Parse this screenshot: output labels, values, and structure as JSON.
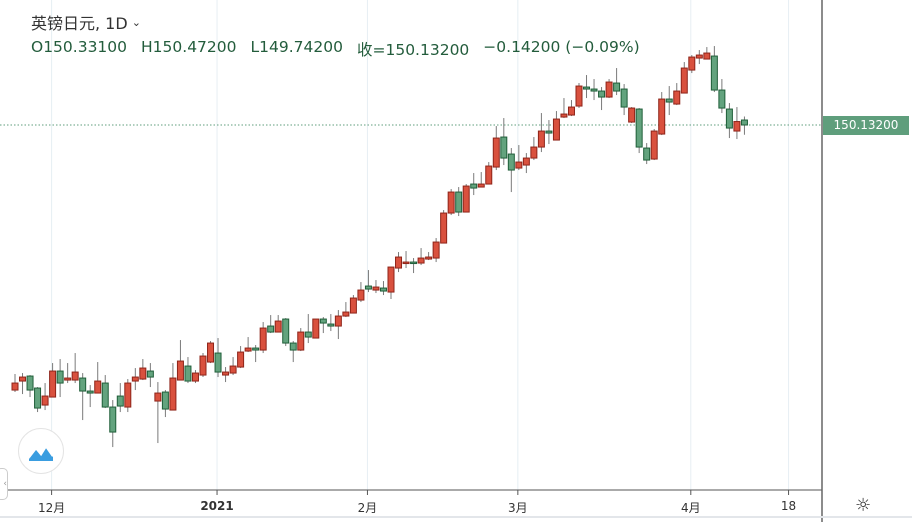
{
  "header": {
    "title": "英镑日元, 1D",
    "open": "O150.33100",
    "high": "H150.47200",
    "low": "L149.74200",
    "close": "收=150.13200",
    "change": "−0.14200 (−0.09%)"
  },
  "price_tag": "150.13200",
  "icons": {
    "settings": "sun-gear-icon",
    "logo": "wave-logo-icon",
    "collapse": "chevron-left-icon",
    "interval": "chevron-down-icon"
  },
  "colors": {
    "up": "#d9513e",
    "up_border": "#8e2419",
    "down": "#63a37e",
    "down_border": "#1f5e39",
    "wick": "#7a7a7a",
    "last_price_line": "#5f9e7c",
    "grid": "#e6eef3"
  },
  "chart_data": {
    "type": "candlestick",
    "title": "英镑日元, 1D",
    "x_tick_labels": [
      "12月",
      "2021",
      "2月",
      "3月",
      "4月",
      "18"
    ],
    "x_tick_candle_index": [
      5,
      27,
      47,
      67,
      90,
      103
    ],
    "last_price": 150.132,
    "ohlc": [
      [
        139.53,
        140.17,
        139.45,
        139.81
      ],
      [
        139.89,
        140.21,
        139.37,
        140.05
      ],
      [
        140.09,
        140.13,
        139.25,
        139.53
      ],
      [
        139.61,
        139.65,
        138.65,
        138.81
      ],
      [
        138.93,
        139.81,
        138.73,
        139.29
      ],
      [
        139.25,
        140.61,
        139.25,
        140.29
      ],
      [
        140.29,
        140.77,
        139.25,
        139.81
      ],
      [
        139.93,
        140.61,
        139.81,
        140.01
      ],
      [
        139.93,
        141.01,
        139.81,
        140.25
      ],
      [
        140.01,
        140.21,
        138.33,
        139.49
      ],
      [
        139.49,
        139.73,
        138.85,
        139.41
      ],
      [
        139.41,
        140.65,
        139.41,
        139.89
      ],
      [
        139.81,
        140.13,
        138.81,
        138.85
      ],
      [
        138.85,
        139.13,
        137.25,
        137.85
      ],
      [
        139.29,
        139.81,
        138.65,
        138.89
      ],
      [
        138.85,
        139.97,
        138.65,
        139.81
      ],
      [
        139.89,
        140.41,
        139.53,
        140.05
      ],
      [
        139.97,
        140.77,
        139.93,
        140.41
      ],
      [
        140.29,
        140.61,
        139.65,
        140.05
      ],
      [
        139.09,
        139.85,
        137.41,
        139.41
      ],
      [
        139.45,
        139.53,
        138.45,
        138.77
      ],
      [
        138.73,
        140.61,
        138.73,
        140.01
      ],
      [
        139.93,
        141.53,
        139.93,
        140.69
      ],
      [
        140.49,
        140.85,
        139.81,
        139.89
      ],
      [
        139.89,
        140.33,
        139.81,
        140.21
      ],
      [
        140.13,
        141.01,
        140.05,
        140.89
      ],
      [
        140.65,
        141.49,
        140.61,
        141.41
      ],
      [
        141.01,
        141.61,
        140.05,
        140.25
      ],
      [
        140.13,
        140.45,
        139.85,
        140.25
      ],
      [
        140.21,
        140.85,
        140.13,
        140.49
      ],
      [
        140.45,
        141.29,
        140.41,
        141.05
      ],
      [
        141.09,
        141.65,
        141.05,
        141.21
      ],
      [
        141.21,
        141.33,
        140.65,
        141.13
      ],
      [
        141.13,
        142.25,
        141.01,
        142.01
      ],
      [
        142.09,
        142.53,
        141.81,
        141.85
      ],
      [
        141.85,
        142.53,
        141.85,
        142.29
      ],
      [
        142.37,
        142.41,
        141.29,
        141.41
      ],
      [
        141.41,
        141.49,
        140.65,
        141.13
      ],
      [
        141.13,
        142.01,
        141.09,
        141.85
      ],
      [
        141.85,
        142.57,
        141.41,
        141.65
      ],
      [
        141.61,
        142.37,
        141.61,
        142.37
      ],
      [
        142.37,
        142.45,
        141.81,
        142.21
      ],
      [
        142.17,
        142.57,
        141.89,
        142.09
      ],
      [
        142.09,
        142.73,
        141.57,
        142.49
      ],
      [
        142.49,
        143.05,
        142.45,
        142.65
      ],
      [
        142.61,
        143.33,
        142.61,
        143.21
      ],
      [
        143.13,
        143.85,
        143.05,
        143.53
      ],
      [
        143.69,
        144.33,
        143.45,
        143.57
      ],
      [
        143.53,
        143.93,
        143.41,
        143.65
      ],
      [
        143.61,
        143.89,
        143.33,
        143.49
      ],
      [
        143.45,
        144.45,
        143.17,
        144.45
      ],
      [
        144.41,
        145.05,
        144.25,
        144.85
      ],
      [
        144.61,
        145.09,
        144.41,
        144.65
      ],
      [
        144.65,
        144.81,
        144.21,
        144.61
      ],
      [
        144.61,
        145.21,
        144.53,
        144.81
      ],
      [
        144.77,
        145.05,
        144.73,
        144.85
      ],
      [
        144.81,
        145.61,
        144.65,
        145.45
      ],
      [
        145.41,
        146.73,
        145.41,
        146.61
      ],
      [
        146.61,
        147.57,
        146.53,
        147.45
      ],
      [
        147.45,
        147.65,
        146.49,
        146.65
      ],
      [
        146.65,
        147.77,
        146.65,
        147.69
      ],
      [
        147.77,
        148.21,
        147.33,
        147.61
      ],
      [
        147.65,
        148.25,
        147.65,
        147.77
      ],
      [
        147.77,
        148.65,
        147.77,
        148.49
      ],
      [
        148.45,
        150.09,
        148.33,
        149.61
      ],
      [
        149.65,
        150.41,
        148.53,
        148.81
      ],
      [
        148.97,
        149.21,
        147.45,
        148.33
      ],
      [
        148.41,
        149.33,
        148.33,
        148.65
      ],
      [
        148.53,
        149.01,
        148.21,
        148.81
      ],
      [
        148.81,
        149.65,
        148.73,
        149.25
      ],
      [
        149.25,
        150.61,
        149.05,
        149.89
      ],
      [
        149.89,
        150.33,
        149.37,
        149.81
      ],
      [
        149.53,
        150.69,
        149.53,
        150.37
      ],
      [
        150.45,
        151.21,
        150.41,
        150.57
      ],
      [
        150.53,
        151.13,
        150.49,
        150.85
      ],
      [
        150.89,
        151.81,
        150.81,
        151.69
      ],
      [
        151.65,
        152.13,
        151.21,
        151.57
      ],
      [
        151.57,
        151.97,
        151.13,
        151.49
      ],
      [
        151.49,
        151.65,
        150.73,
        151.25
      ],
      [
        151.25,
        151.97,
        151.21,
        151.85
      ],
      [
        151.81,
        152.41,
        151.33,
        151.49
      ],
      [
        151.57,
        151.77,
        150.53,
        150.85
      ],
      [
        150.25,
        150.85,
        150.21,
        150.81
      ],
      [
        150.77,
        150.81,
        149.01,
        149.25
      ],
      [
        149.21,
        149.41,
        148.57,
        148.73
      ],
      [
        148.77,
        149.97,
        148.73,
        149.89
      ],
      [
        149.77,
        151.45,
        149.73,
        151.17
      ],
      [
        151.17,
        151.69,
        150.53,
        151.05
      ],
      [
        150.97,
        151.81,
        150.93,
        151.49
      ],
      [
        151.41,
        152.65,
        151.41,
        152.41
      ],
      [
        152.33,
        152.93,
        152.21,
        152.85
      ],
      [
        152.81,
        153.13,
        152.57,
        152.93
      ],
      [
        152.77,
        153.25,
        152.77,
        153.01
      ],
      [
        152.89,
        153.29,
        151.45,
        151.53
      ],
      [
        151.53,
        151.97,
        150.61,
        150.81
      ],
      [
        150.77,
        151.01,
        149.61,
        150.01
      ],
      [
        149.89,
        150.85,
        149.57,
        150.27
      ],
      [
        150.331,
        150.472,
        149.742,
        150.132
      ]
    ]
  }
}
